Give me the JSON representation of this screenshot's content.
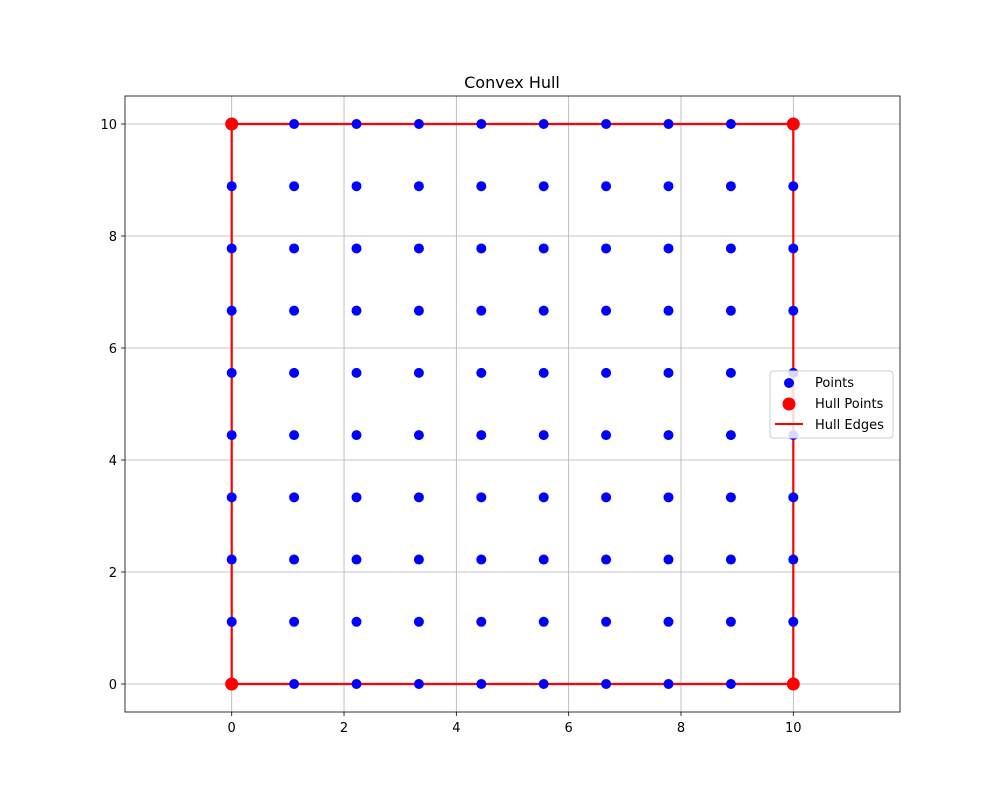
{
  "chart_data": {
    "type": "scatter",
    "title": "Convex Hull",
    "xlabel": "",
    "ylabel": "",
    "xlim": [
      -1.9,
      11.9
    ],
    "ylim": [
      -0.5,
      10.5
    ],
    "xticks": [
      0,
      2,
      4,
      6,
      8,
      10
    ],
    "yticks": [
      0,
      2,
      4,
      6,
      8,
      10
    ],
    "grid": true,
    "legend_position": "center-right",
    "grid_axis_values": [
      0,
      1.1111,
      2.2222,
      3.3333,
      4.4444,
      5.5556,
      6.6667,
      7.7778,
      8.8889,
      10
    ],
    "series": [
      {
        "name": "Points",
        "kind": "scatter",
        "color": "#0000ff",
        "grid_n": 10,
        "grid_min": 0,
        "grid_max": 10
      },
      {
        "name": "Hull Points",
        "kind": "scatter",
        "color": "#ff0000",
        "points": [
          [
            0,
            0
          ],
          [
            10,
            0
          ],
          [
            10,
            10
          ],
          [
            0,
            10
          ]
        ]
      },
      {
        "name": "Hull Edges",
        "kind": "line",
        "color": "#ff0000",
        "points": [
          [
            0,
            0
          ],
          [
            10,
            0
          ],
          [
            10,
            10
          ],
          [
            0,
            10
          ],
          [
            0,
            0
          ]
        ]
      }
    ]
  }
}
